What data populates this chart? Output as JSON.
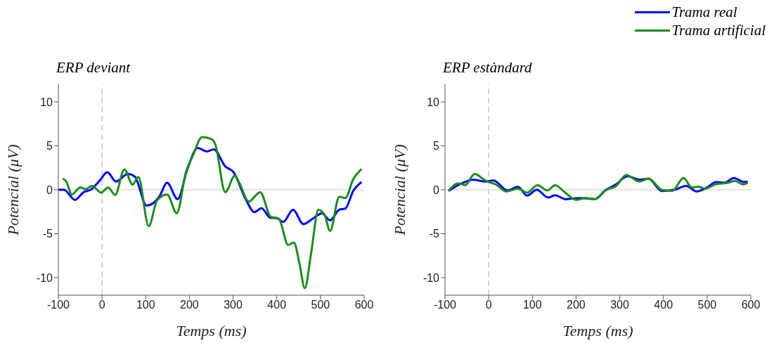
{
  "chart_data": [
    {
      "type": "line",
      "title": "ERP deviant",
      "xlabel": "Temps (ms)",
      "ylabel": "Potencial (μV)",
      "xlim": [
        -100,
        600
      ],
      "xticks": [
        -100,
        0,
        100,
        200,
        300,
        400,
        500,
        600
      ],
      "ylim": [
        -12,
        12
      ],
      "yticks": [
        -10,
        -5,
        0,
        5,
        10
      ],
      "grid": false,
      "legend": false,
      "marker": "none",
      "line_style": "solid",
      "ref_lines": [
        {
          "axis": "x",
          "value": 0,
          "color": "#c8c8c8",
          "line_style": "dashed"
        },
        {
          "axis": "y",
          "value": 0,
          "color": "#d9d9d9",
          "line_style": "solid"
        }
      ],
      "series": [
        {
          "color": "#0000ff",
          "x": [
            -100,
            -87,
            -62,
            -42,
            -26,
            -5,
            12,
            32,
            59,
            75,
            102,
            131,
            149,
            173,
            195,
            219,
            240,
            256,
            282,
            301,
            330,
            349,
            365,
            386,
            399,
            415,
            437,
            461,
            485,
            503,
            522,
            543,
            557,
            575,
            594
          ],
          "values": [
            0,
            0,
            -1.15,
            -0.27,
            0,
            1.07,
            2,
            0.94,
            1.8,
            1.5,
            -1.8,
            -0.8,
            0.8,
            -1.07,
            2.3,
            4.76,
            4.36,
            4.6,
            2.67,
            2,
            -1.2,
            -2.54,
            -2.1,
            -3.2,
            -3.2,
            -3.66,
            -2.27,
            -3.9,
            -3.2,
            -2.67,
            -3.48,
            -2.27,
            -2.14,
            -0.13,
            0.88
          ]
        },
        {
          "color": "#1a8c1a",
          "x": [
            -90,
            -82,
            -69,
            -50,
            -37,
            -23,
            -2,
            14,
            30,
            51,
            70,
            83,
            107,
            126,
            149,
            171,
            192,
            208,
            229,
            251,
            259,
            282,
            304,
            314,
            336,
            362,
            386,
            405,
            426,
            439,
            452,
            464,
            479,
            495,
            509,
            522,
            543,
            557,
            575,
            594
          ],
          "values": [
            1.28,
            0.94,
            -0.53,
            0.27,
            0.08,
            0.45,
            -0.32,
            0.27,
            -0.6,
            2.33,
            0.6,
            1.47,
            -4.14,
            -1.2,
            -0.53,
            -2.67,
            2,
            3.88,
            6,
            5.75,
            5.2,
            -0.27,
            1.6,
            0.8,
            -1.34,
            -0.27,
            -3.07,
            -3.34,
            -6.28,
            -6,
            -8.4,
            -11.2,
            -7.09,
            -2.27,
            -2.8,
            -4.68,
            -0.8,
            -0.94,
            1.2,
            2.35
          ]
        }
      ]
    },
    {
      "type": "line",
      "title": "ERP estàndard",
      "xlabel": "Temps (ms)",
      "ylabel": "Potencial (μV)",
      "xlim": [
        -100,
        600
      ],
      "xticks": [
        -100,
        0,
        100,
        200,
        300,
        400,
        500,
        600
      ],
      "ylim": [
        -12,
        12
      ],
      "yticks": [
        -10,
        -5,
        0,
        5,
        10
      ],
      "grid": false,
      "legend": "top right",
      "marker": "none",
      "line_style": "solid",
      "ref_lines": [
        {
          "axis": "x",
          "value": 0,
          "color": "#c8c8c8",
          "line_style": "dashed"
        },
        {
          "axis": "y",
          "value": 0,
          "color": "#d9d9d9",
          "line_style": "solid"
        }
      ],
      "series": [
        {
          "name": "Trama real",
          "color": "#0000ff",
          "x": [
            -92,
            -67,
            -35,
            -8,
            11,
            43,
            67,
            88,
            110,
            136,
            152,
            176,
            211,
            243,
            267,
            289,
            318,
            345,
            366,
            396,
            425,
            452,
            476,
            500,
            521,
            540,
            561,
            585,
            593
          ],
          "values": [
            -0.13,
            0.61,
            1.15,
            0.94,
            1.07,
            -0.08,
            0.35,
            -0.67,
            0,
            -0.88,
            -0.61,
            -1.07,
            -0.94,
            -1.07,
            -0.05,
            0.53,
            1.55,
            1.15,
            1.26,
            -0.13,
            0,
            0.45,
            -0.19,
            0.27,
            0.88,
            0.8,
            1.34,
            0.88,
            0.94
          ]
        },
        {
          "name": "Trama artificial",
          "color": "#1a8c1a",
          "x": [
            -92,
            -70,
            -54,
            -32,
            -8,
            19,
            40,
            67,
            88,
            112,
            134,
            152,
            174,
            200,
            222,
            243,
            270,
            291,
            315,
            345,
            366,
            396,
            420,
            446,
            465,
            479,
            495,
            519,
            548,
            564,
            583,
            593
          ],
          "values": [
            -0.13,
            0.72,
            0.53,
            1.8,
            1.07,
            0.53,
            -0.19,
            0.13,
            -0.32,
            0.53,
            -0.08,
            0.53,
            -0.27,
            -1.15,
            -0.94,
            -1.07,
            0,
            0.4,
            1.68,
            0.94,
            1.28,
            0,
            -0.13,
            1.34,
            0.27,
            0.35,
            0.13,
            0.61,
            0.8,
            1,
            0.61,
            0.8
          ]
        }
      ]
    }
  ]
}
